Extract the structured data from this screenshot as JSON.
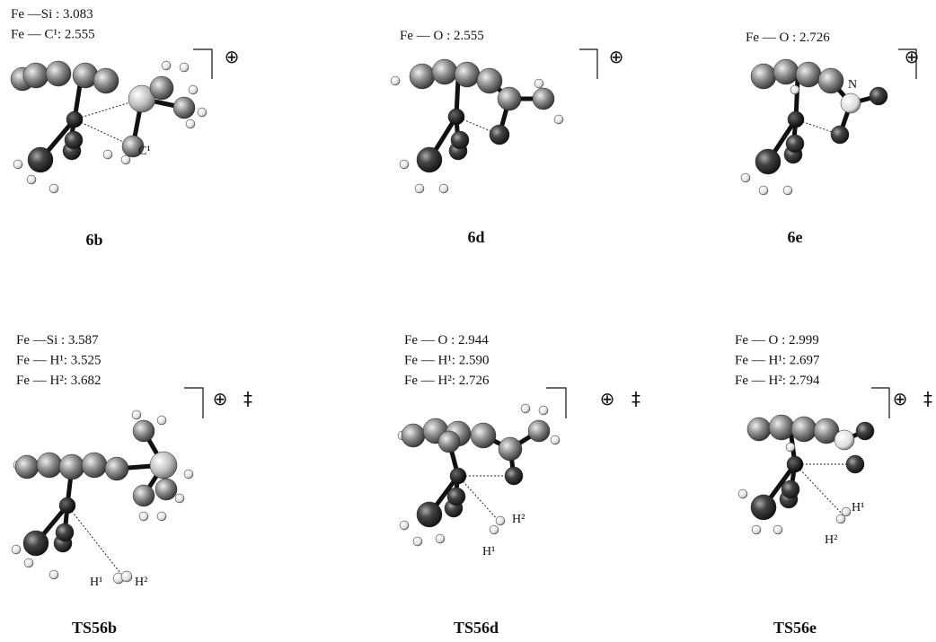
{
  "panels": [
    {
      "label": "6b",
      "distances": [
        "Fe —Si  : 3.083",
        "Fe — C¹: 2.555"
      ],
      "charge": "⊕",
      "atom_labels": [
        "C¹"
      ]
    },
    {
      "label": "6d",
      "distances": [
        "Fe — O  : 2.555"
      ],
      "charge": "⊕"
    },
    {
      "label": "6e",
      "distances": [
        "Fe — O  : 2.726"
      ],
      "charge": "⊕",
      "atom_labels": [
        "N"
      ]
    },
    {
      "label": "TS56b",
      "distances": [
        "Fe —Si  : 3.587",
        "Fe — H¹: 3.525",
        "Fe — H²: 3.682"
      ],
      "charge": "⊕",
      "transition": "‡",
      "atom_labels": [
        "H¹",
        "H²"
      ]
    },
    {
      "label": "TS56d",
      "distances": [
        "Fe — O  : 2.944",
        "Fe — H¹: 2.590",
        "Fe — H²: 2.726"
      ],
      "charge": "⊕",
      "transition": "‡",
      "atom_labels": [
        "H²",
        "H¹"
      ]
    },
    {
      "label": "TS56e",
      "distances": [
        "Fe — O  : 2.999",
        "Fe — H¹: 2.697",
        "Fe — H²: 2.794"
      ],
      "charge": "⊕",
      "transition": "‡",
      "atom_labels": [
        "H¹",
        "H²"
      ]
    }
  ]
}
